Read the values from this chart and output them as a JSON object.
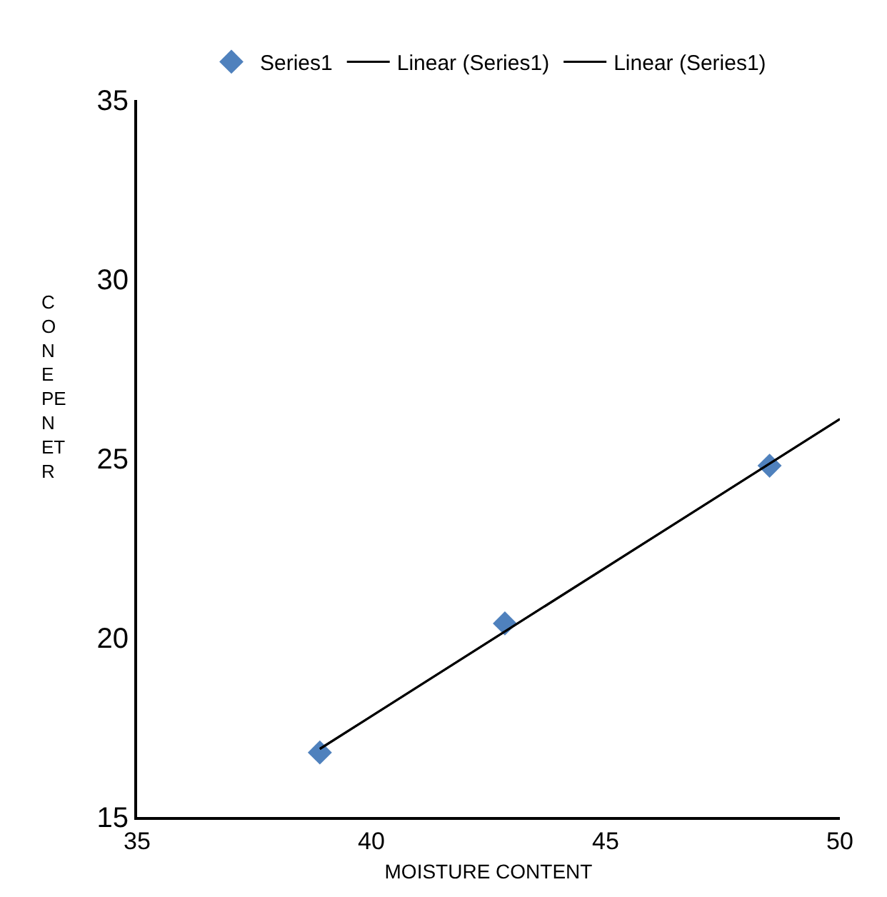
{
  "chart_data": {
    "type": "scatter",
    "xlabel": "MOISTURE CONTENT",
    "ylabel": "C\nO\nN\nE\nPE\nN\nET\nR",
    "xlim": [
      35,
      50
    ],
    "xticks": [
      35,
      40,
      45,
      50
    ],
    "ylim": [
      15,
      35
    ],
    "yticks": [
      15,
      20,
      25,
      30,
      35
    ],
    "legend": "top",
    "series": [
      {
        "name": "Series1",
        "color": "#4f81bd",
        "marker": "diamond",
        "x": [
          38.9,
          42.85,
          48.5
        ],
        "values": [
          16.8,
          20.4,
          24.8
        ]
      },
      {
        "name": "Linear (Series1)",
        "type": "line",
        "marker": "none",
        "color": "#000000",
        "x": [
          38.9,
          50
        ],
        "values": [
          16.9,
          26.1
        ]
      },
      {
        "name": "Linear (Series1)",
        "type": "line",
        "marker": "none",
        "color": "#000000",
        "x": [
          38.9,
          50
        ],
        "values": [
          16.9,
          26.1
        ]
      }
    ]
  }
}
